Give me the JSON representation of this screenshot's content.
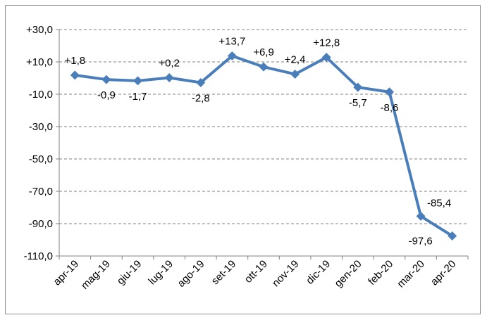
{
  "chart_data": {
    "type": "line",
    "title": "",
    "xlabel": "",
    "ylabel": "",
    "categories": [
      "apr-19",
      "mag-19",
      "giu-19",
      "lug-19",
      "ago-19",
      "set-19",
      "ott-19",
      "nov-19",
      "dic-19",
      "gen-20",
      "feb-20",
      "mar-20",
      "apr-20"
    ],
    "series": [
      {
        "values": [
          1.8,
          -0.9,
          -1.7,
          0.2,
          -2.8,
          13.7,
          6.9,
          2.4,
          12.8,
          -5.7,
          -8.6,
          -85.4,
          -97.6
        ],
        "labels": [
          "+1,8",
          "-0,9",
          "-1,7",
          "+0,2",
          "-2,8",
          "+13,7",
          "+6,9",
          "+2,4",
          "+12,8",
          "-5,7",
          "-8,6",
          "-85,4",
          "-97,6"
        ],
        "color": "#4a7ebb"
      }
    ],
    "ylim": [
      -110,
      30
    ],
    "yticks": [
      30,
      10,
      -10,
      -30,
      -50,
      -70,
      -90,
      -110
    ],
    "ytick_labels": [
      "+30,0",
      "+10,0",
      "-10,0",
      "-30,0",
      "-50,0",
      "-70,0",
      "-90,0",
      "-110,0"
    ],
    "grid": true,
    "legend": "none"
  }
}
